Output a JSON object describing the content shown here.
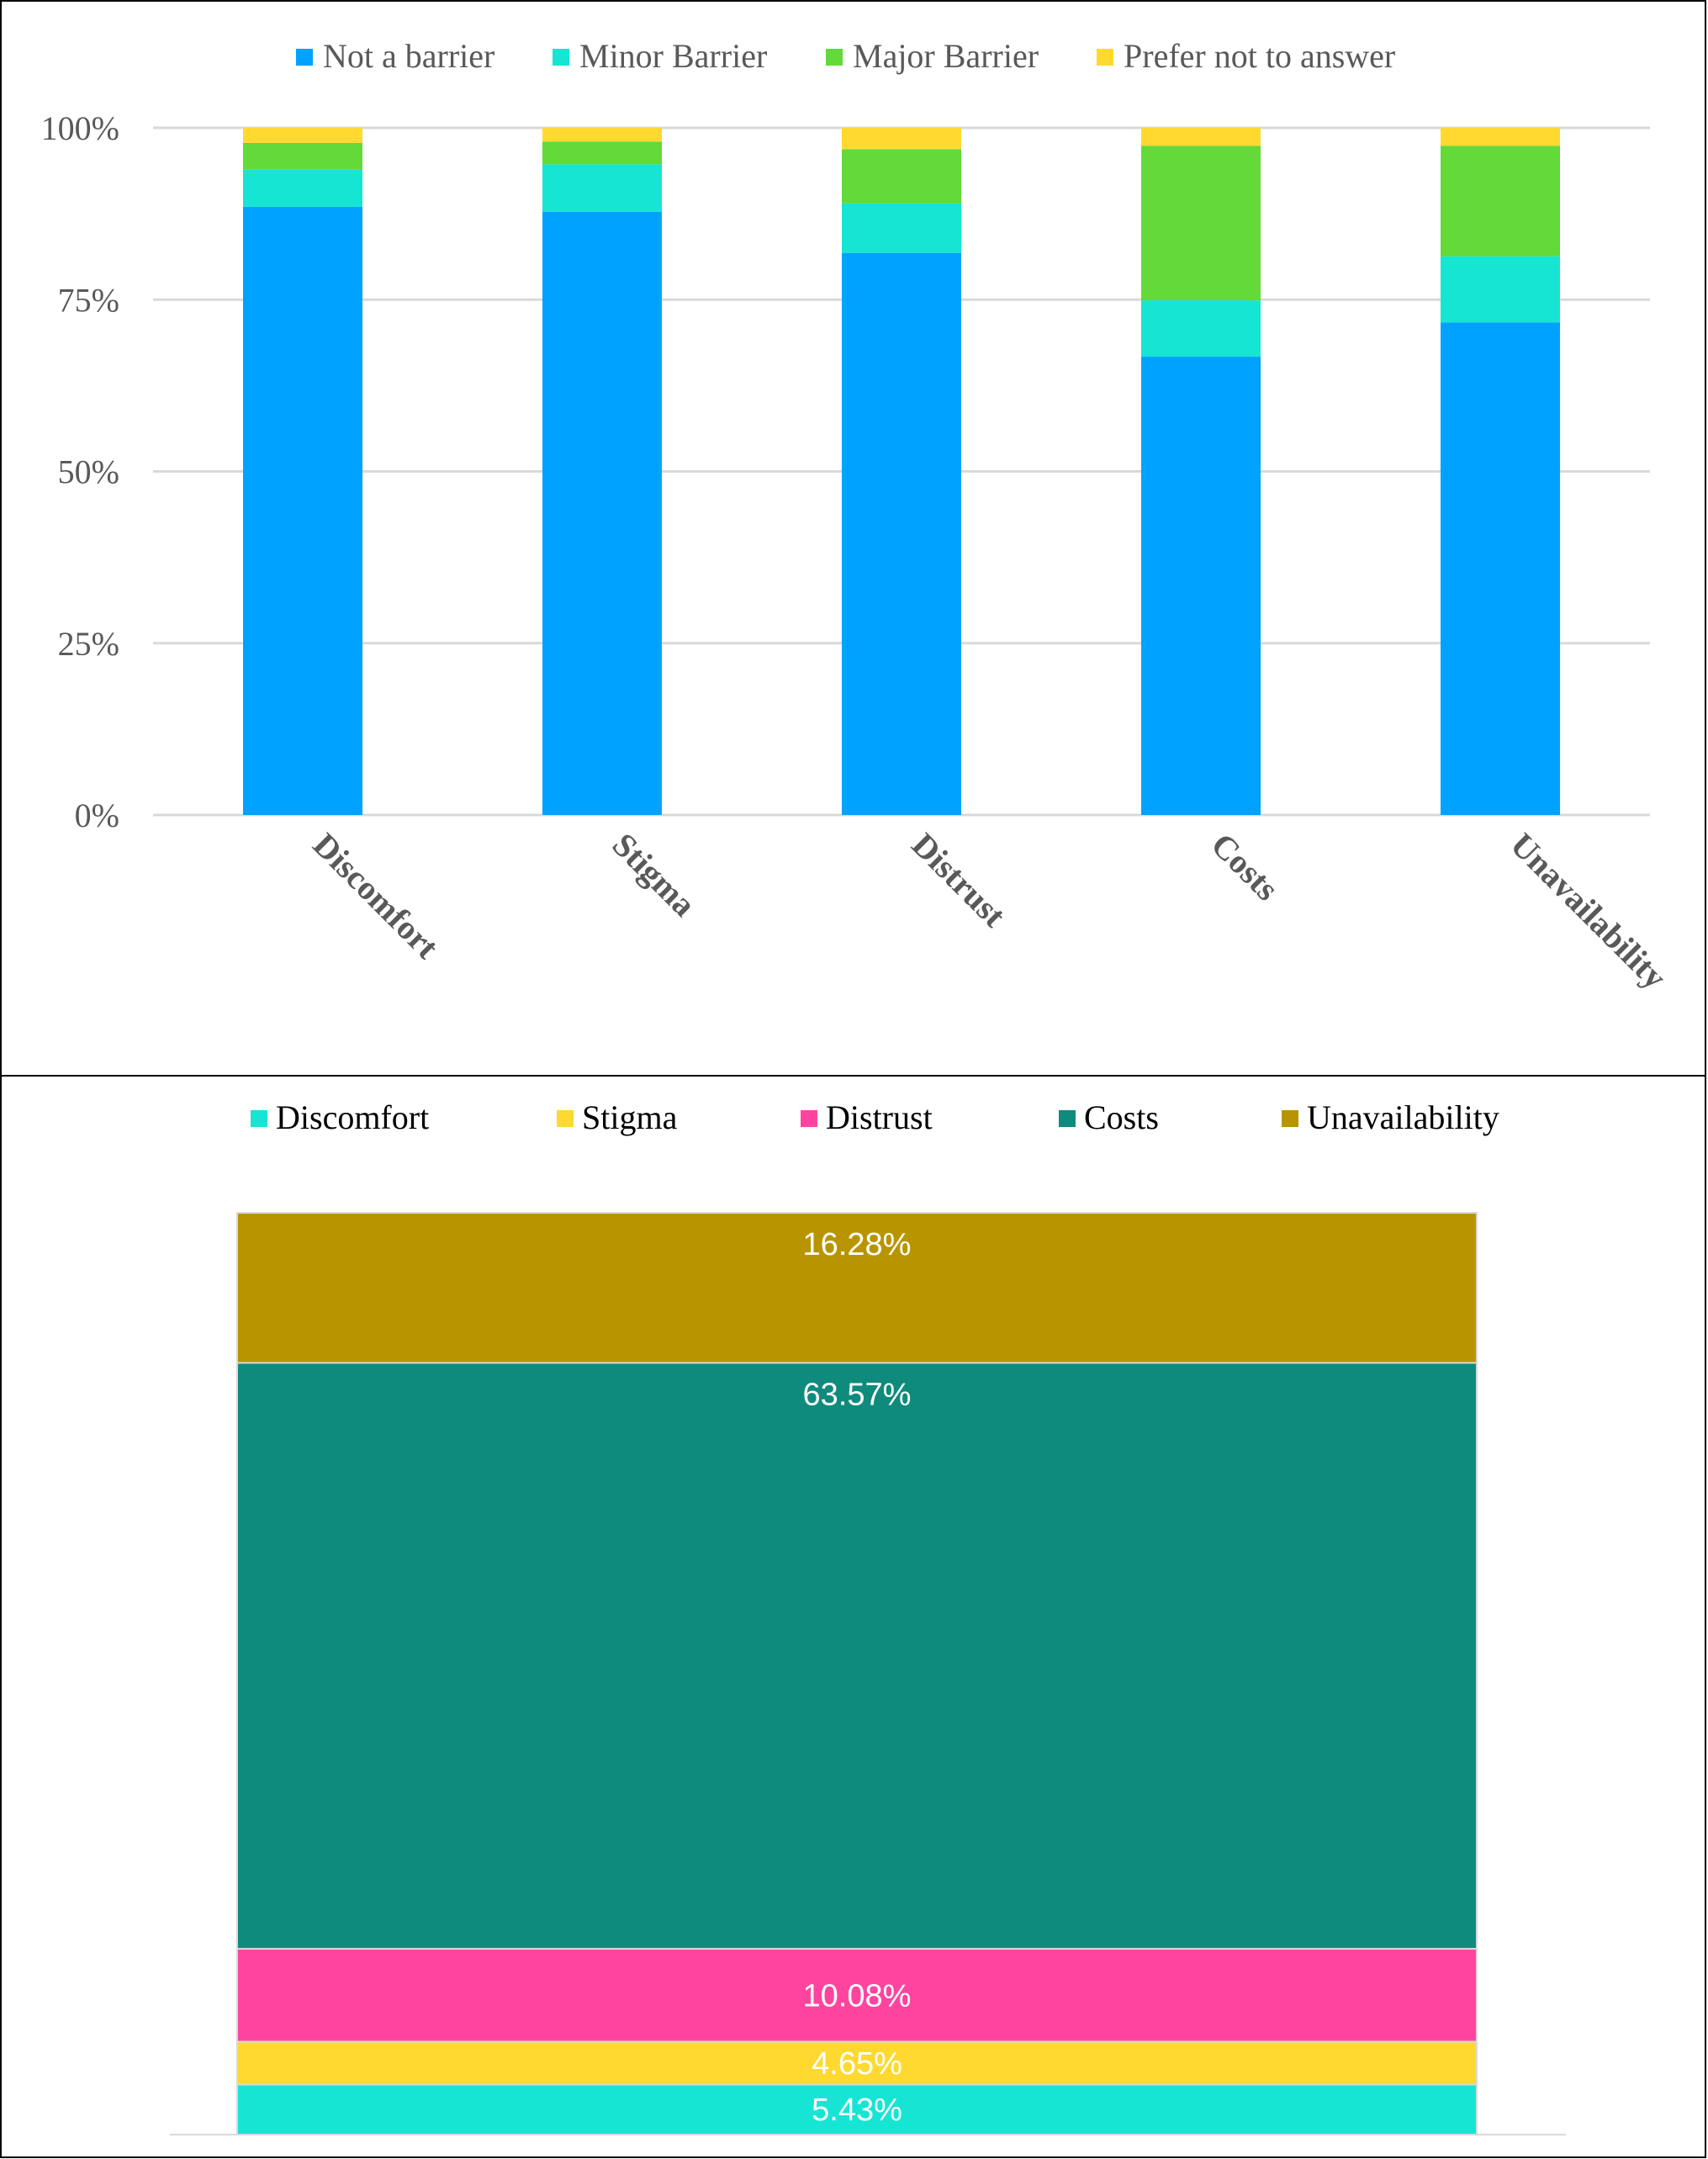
{
  "chart_data": [
    {
      "type": "bar",
      "stacked": true,
      "categories": [
        "Discomfort",
        "Stigma",
        "Distrust",
        "Costs",
        "Unavailability"
      ],
      "series": [
        {
          "name": "Not a barrier",
          "color": "#00a2ff",
          "values": [
            88.5,
            87.8,
            81.8,
            66.7,
            71.7
          ]
        },
        {
          "name": "Minor Barrier",
          "color": "#17e5d4",
          "values": [
            5.4,
            6.9,
            7.2,
            8.2,
            9.6
          ]
        },
        {
          "name": "Major Barrier",
          "color": "#63d93a",
          "values": [
            3.9,
            3.3,
            7.9,
            22.5,
            16.1
          ]
        },
        {
          "name": "Prefer not to answer",
          "color": "#ffd92f",
          "values": [
            2.2,
            2.0,
            3.1,
            2.6,
            2.6
          ]
        }
      ],
      "ylim": [
        0,
        100
      ],
      "yticks": [
        "0%",
        "25%",
        "50%",
        "75%",
        "100%"
      ],
      "grid": true,
      "legend": "top"
    },
    {
      "type": "bar",
      "stacked": true,
      "categories": [
        ""
      ],
      "series": [
        {
          "name": "Discomfort",
          "color": "#17e5d4",
          "values": [
            5.43
          ],
          "label": "5.43%"
        },
        {
          "name": "Stigma",
          "color": "#ffd92f",
          "values": [
            4.65
          ],
          "label": "4.65%"
        },
        {
          "name": "Distrust",
          "color": "#ff44a0",
          "values": [
            10.08
          ],
          "label": "10.08%"
        },
        {
          "name": "Costs",
          "color": "#0f8b7d",
          "values": [
            63.57
          ],
          "label": "63.57%"
        },
        {
          "name": "Unavailability",
          "color": "#b89500",
          "values": [
            16.28
          ],
          "label": "16.28%"
        }
      ],
      "ylim": [
        0,
        100
      ],
      "legend": "top"
    }
  ]
}
